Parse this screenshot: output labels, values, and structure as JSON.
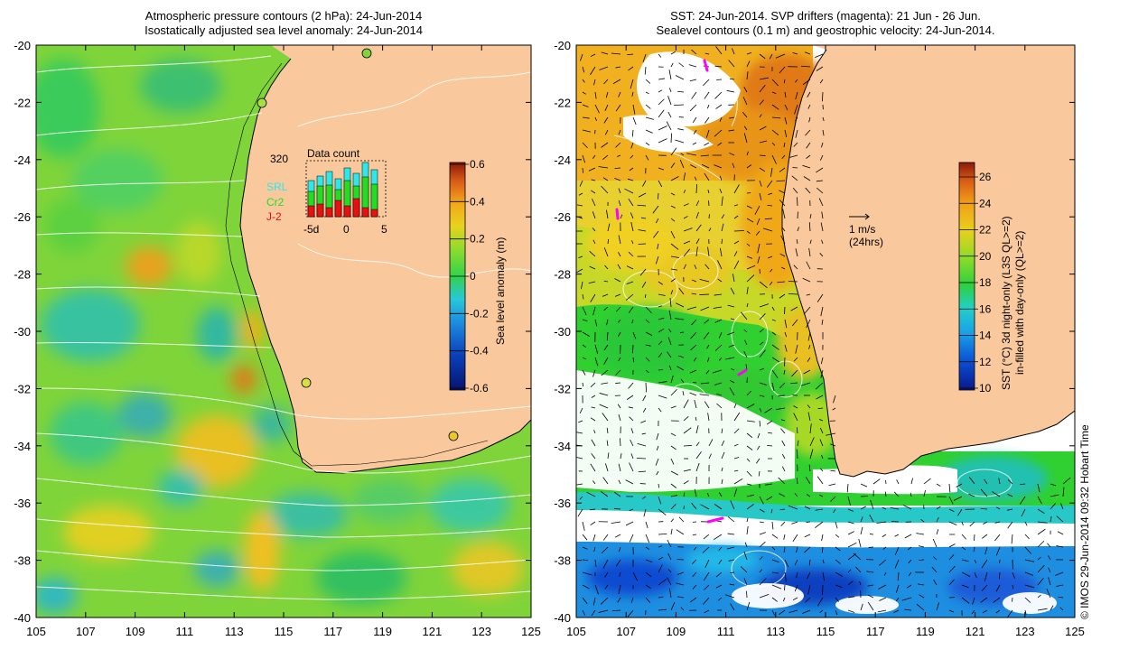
{
  "left_panel": {
    "title_line1": "Atmospheric pressure contours (2 hPa): 24-Jun-2014",
    "title_line2": "Isostatically adjusted sea level anomaly: 24-Jun-2014",
    "colorbar": {
      "label": "Sea level anomaly (m)",
      "ticks": [
        "0.6",
        "0.4",
        "0.2",
        "0",
        "-0.2",
        "-0.4",
        "-0.6"
      ],
      "colors": [
        "#08136e",
        "#0a3fb8",
        "#1d8ee0",
        "#28c8d8",
        "#32d24a",
        "#8fdc2c",
        "#e8d21e",
        "#f2a81c",
        "#d85a18",
        "#8a1a0a"
      ]
    },
    "inset": {
      "title": "Data count",
      "max_label": "320",
      "series": [
        "SRL",
        "Cr2",
        "J-2"
      ],
      "series_colors": [
        "#2ee8e8",
        "#22dd22",
        "#e81010"
      ],
      "x_ticks": [
        "-5d",
        "0",
        "5"
      ]
    }
  },
  "right_panel": {
    "title_line1": "SST: 24-Jun-2014. SVP drifters (magenta): 21 Jun - 26 Jun.",
    "title_line2": "Sealevel contours (0.1 m) and geostrophic velocity: 24-Jun-2014.",
    "scale_arrow_label1": "1 m/s",
    "scale_arrow_label2": "(24hrs)",
    "colorbar": {
      "label_line1": "SST (°C) 3d night-only (L3S QL>=2)",
      "label_line2": "in-filled with day-only (QL>=2)",
      "ticks": [
        "26",
        "24",
        "22",
        "20",
        "18",
        "16",
        "14",
        "12",
        "10"
      ],
      "colors": [
        "#0a1888",
        "#0a4cd0",
        "#1aa0e8",
        "#22d0c8",
        "#2ed040",
        "#8cdc28",
        "#e8d01c",
        "#f2a018",
        "#d85c14",
        "#8a1a0a"
      ]
    }
  },
  "axes": {
    "y_labels": [
      "-20",
      "-22",
      "-24",
      "-26",
      "-28",
      "-30",
      "-32",
      "-34",
      "-36",
      "-38",
      "-40"
    ],
    "x_labels": [
      "105",
      "107",
      "109",
      "111",
      "113",
      "115",
      "117",
      "119",
      "121",
      "123",
      "125"
    ]
  },
  "colors": {
    "land": "#f9c99d",
    "magenta": "#ff00ff"
  },
  "copyright": "© IMOS 29-Jun-2014 09:32 Hobart Time"
}
